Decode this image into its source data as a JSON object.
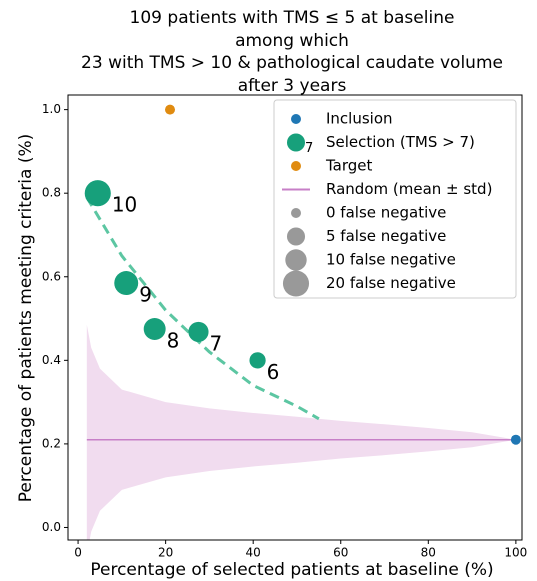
{
  "chart_data": {
    "type": "scatter",
    "title": [
      "109 patients with TMS ≤ 5 at baseline",
      "among which",
      "23 with TMS > 10 & pathological caudate volume",
      "after 3 years"
    ],
    "x_label": "Percentage of selected patients at baseline (%)",
    "y_label": "Percentage of patients meeting criteria (%)",
    "xlim": [
      -2.3,
      101.4
    ],
    "xticks": [
      0,
      20,
      40,
      60,
      80,
      100
    ],
    "ylim": [
      -0.03,
      1.035
    ],
    "yticks": [
      {
        "value": 0,
        "label": "0.0"
      },
      0.2,
      0.4,
      0.6,
      0.8,
      {
        "value": 1,
        "label": "1.0"
      }
    ],
    "legend_position": "upper right",
    "series": [
      {
        "name": "Inclusion",
        "color": "#1f77b4",
        "x": [
          100
        ],
        "values": [
          0.21
        ],
        "sizes": [
          0
        ]
      },
      {
        "name": "Selection (TMS > 7)",
        "marker_text": "7",
        "color": "#17a07b",
        "x": [
          4.5,
          11,
          17.5,
          27.5,
          41
        ],
        "values": [
          0.8,
          0.585,
          0.475,
          0.468,
          0.4
        ],
        "sizes": [
          20,
          15,
          11,
          8,
          3
        ],
        "point_labels": [
          "10",
          "9",
          "8",
          "7",
          "6"
        ]
      },
      {
        "name": "Target",
        "color": "#e08b10",
        "x": [
          21
        ],
        "values": [
          1.0
        ],
        "sizes": [
          0
        ]
      },
      {
        "name": "Random (mean ± std)",
        "kind": "band",
        "color": "#c77fc7",
        "band_color": "#f1dcef",
        "x": [
          2,
          3,
          5,
          10,
          20,
          30,
          40,
          50,
          60,
          70,
          80,
          90,
          100
        ],
        "values": [
          0.21,
          0.21,
          0.21,
          0.21,
          0.21,
          0.21,
          0.21,
          0.21,
          0.21,
          0.21,
          0.21,
          0.21,
          0.21
        ],
        "std": [
          0.275,
          0.22,
          0.17,
          0.12,
          0.09,
          0.075,
          0.064,
          0.055,
          0.045,
          0.037,
          0.028,
          0.018,
          0
        ]
      }
    ],
    "fit": {
      "color": "#5cc6a2",
      "dashed": true,
      "x": [
        2,
        10,
        20,
        30,
        40,
        50,
        55
      ],
      "values": [
        0.79,
        0.65,
        0.52,
        0.42,
        0.34,
        0.29,
        0.26
      ]
    },
    "size_legend": {
      "color": "#999999",
      "entries": [
        {
          "value": 0,
          "label": "0 false negative"
        },
        {
          "value": 5,
          "label": "5 false negative"
        },
        {
          "value": 10,
          "label": "10 false negative"
        },
        {
          "value": 20,
          "label": "20 false negative"
        }
      ]
    }
  }
}
